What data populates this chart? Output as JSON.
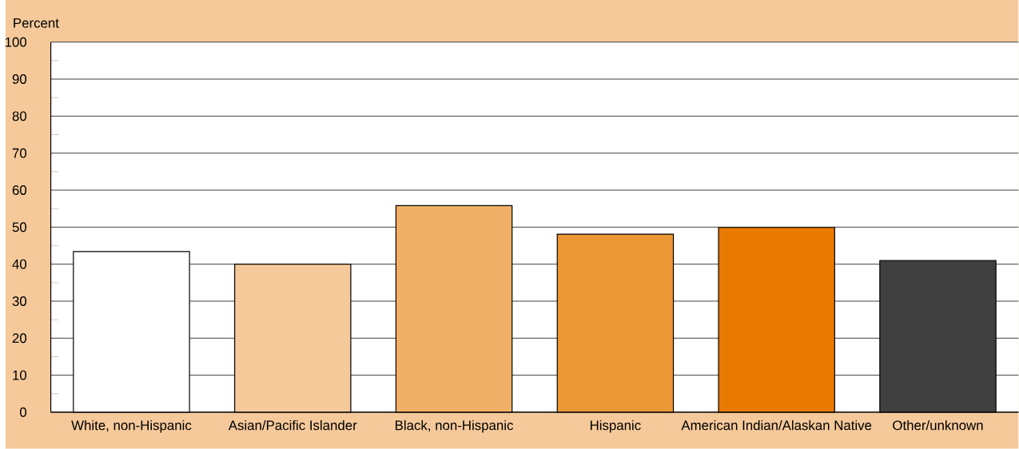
{
  "chart_data": {
    "type": "bar",
    "ylabel": "Percent",
    "categories": [
      "White, non-Hispanic",
      "Asian/Pacific Islander",
      "Black, non-Hispanic",
      "Hispanic",
      "American Indian/Alaskan Native",
      "Other/unknown"
    ],
    "values": [
      43.4,
      40,
      55.8,
      48.1,
      49.9,
      41
    ],
    "colors": [
      "#ffffff",
      "#f5c99a",
      "#f1b067",
      "#ec9735",
      "#e87a00",
      "#404040"
    ],
    "ylim": [
      0,
      100
    ],
    "yticks": [
      0,
      10,
      20,
      30,
      40,
      50,
      60,
      70,
      80,
      90,
      100
    ],
    "grid": "y"
  }
}
